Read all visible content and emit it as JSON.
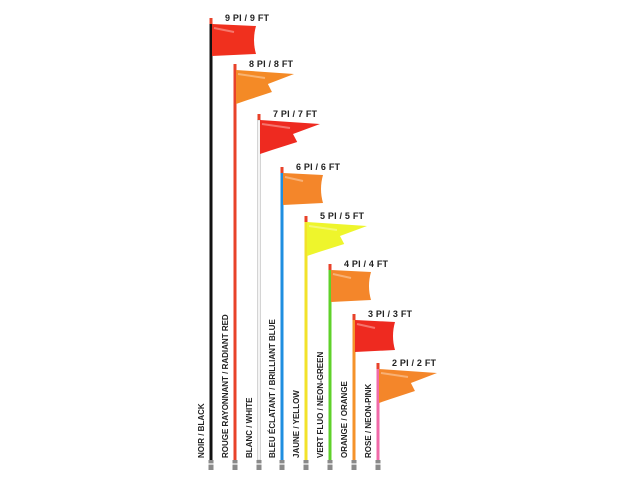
{
  "whips": [
    {
      "size": "9 PI / 9 FT",
      "color_name": "NOIR / BLACK",
      "pole_color": "#111111",
      "flag_color": "#f0301e",
      "flag_shape": "rect"
    },
    {
      "size": "8 PI / 8 FT",
      "color_name": "ROUGE RAYONNANT / RADIANT RED",
      "pole_color": "#e8422a",
      "flag_color": "#f48a26",
      "flag_shape": "pennant"
    },
    {
      "size": "7 PI / 7 FT",
      "color_name": "BLANC / WHITE",
      "pole_color": "#f4f4f4",
      "flag_color": "#ee2a20",
      "flag_shape": "pennant"
    },
    {
      "size": "6 PI / 6 FT",
      "color_name": "BLEU ÉCLATANT / BRILLIANT BLUE",
      "pole_color": "#1f8ee0",
      "flag_color": "#f4862a",
      "flag_shape": "rect"
    },
    {
      "size": "5 PI / 5 FT",
      "color_name": "JAUNE / YELLOW",
      "pole_color": "#f2e22a",
      "flag_color": "#eef52c",
      "flag_shape": "pennant"
    },
    {
      "size": "4 PI / 4 FT",
      "color_name": "VERT FLUO / NEON-GREEN",
      "pole_color": "#5fd12a",
      "flag_color": "#f4862a",
      "flag_shape": "rect"
    },
    {
      "size": "3 PI / 3 FT",
      "color_name": "ORANGE / ORANGE",
      "pole_color": "#f5922a",
      "flag_color": "#ee2a20",
      "flag_shape": "rect"
    },
    {
      "size": "2 PI / 2 FT",
      "color_name": "ROSE / NEON-PINK",
      "pole_color": "#f06aa8",
      "flag_color": "#f4862a",
      "flag_shape": "pennant"
    }
  ]
}
